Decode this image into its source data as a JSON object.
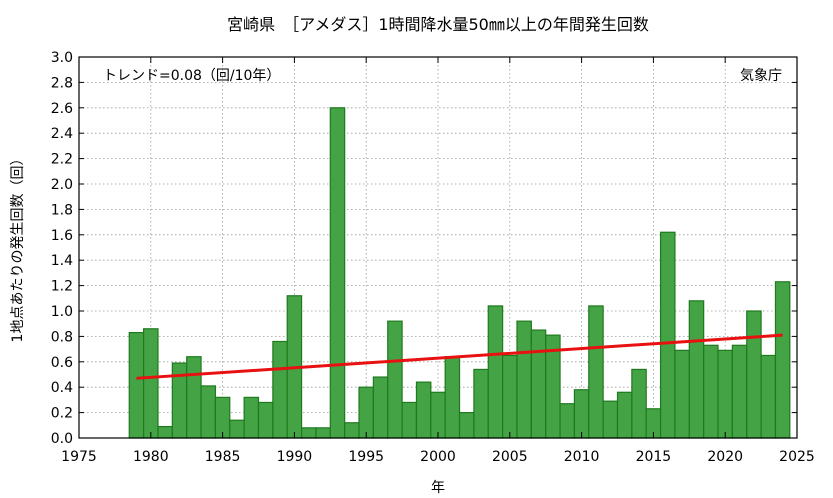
{
  "chart_data": {
    "type": "bar",
    "title": "宮崎県　［アメダス］1時間降水量50㎜以上の年間発生回数",
    "xlabel": "年",
    "ylabel": "1地点あたりの発生回数（回）",
    "annotation_trend": "トレンド=0.08（回/10年）",
    "source": "気象庁",
    "xlim": [
      1975,
      2025
    ],
    "ylim": [
      0,
      3.0
    ],
    "x_ticks": [
      1975,
      1980,
      1985,
      1990,
      1995,
      2000,
      2005,
      2010,
      2015,
      2020,
      2025
    ],
    "y_ticks": [
      0.0,
      0.2,
      0.4,
      0.6,
      0.8,
      1.0,
      1.2,
      1.4,
      1.6,
      1.8,
      2.0,
      2.2,
      2.4,
      2.6,
      2.8,
      3.0
    ],
    "grid": true,
    "bar_color": "#44a344",
    "bar_edge_color": "#1f7a1f",
    "trend_color": "#e81010",
    "years": [
      1979,
      1980,
      1981,
      1982,
      1983,
      1984,
      1985,
      1986,
      1987,
      1988,
      1989,
      1990,
      1991,
      1992,
      1993,
      1994,
      1995,
      1996,
      1997,
      1998,
      1999,
      2000,
      2001,
      2002,
      2003,
      2004,
      2005,
      2006,
      2007,
      2008,
      2009,
      2010,
      2011,
      2012,
      2013,
      2014,
      2015,
      2016,
      2017,
      2018,
      2019,
      2020,
      2021,
      2022,
      2023,
      2024
    ],
    "values": [
      0.83,
      0.86,
      0.09,
      0.59,
      0.64,
      0.41,
      0.32,
      0.14,
      0.32,
      0.28,
      0.76,
      1.12,
      0.08,
      0.08,
      2.6,
      0.12,
      0.4,
      0.48,
      0.92,
      0.28,
      0.44,
      0.36,
      0.64,
      0.2,
      0.54,
      1.04,
      0.65,
      0.92,
      0.85,
      0.81,
      0.27,
      0.38,
      1.04,
      0.29,
      0.36,
      0.54,
      0.23,
      1.62,
      0.69,
      1.08,
      0.73,
      0.69,
      0.73,
      1.0,
      0.65,
      1.23
    ],
    "trend": {
      "x": [
        1979,
        2024
      ],
      "y": [
        0.47,
        0.81
      ]
    }
  }
}
